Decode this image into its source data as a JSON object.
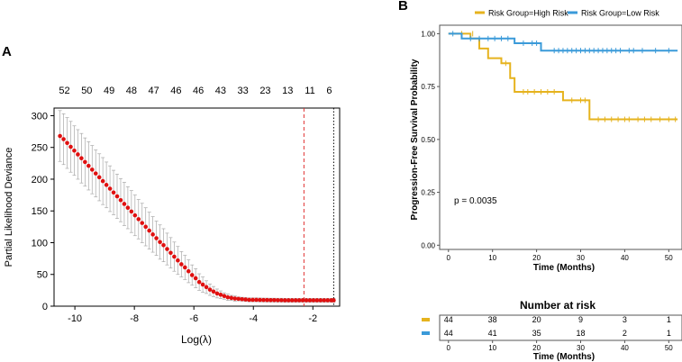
{
  "panels": {
    "a_label": "A",
    "b_label": "B"
  },
  "chart_data": [
    {
      "type": "scatter",
      "panel": "A",
      "xlabel": "Log(λ)",
      "ylabel": "Partial Likelihood Deviance",
      "xlim": [
        -10.7,
        -1.1
      ],
      "ylim": [
        0,
        312
      ],
      "x_ticks": [
        -10,
        -8,
        -6,
        -4,
        -2
      ],
      "x_tick_labels": [
        "-10",
        "-8",
        "-6",
        "-4",
        "-2"
      ],
      "y_ticks": [
        0,
        50,
        100,
        150,
        200,
        250,
        300
      ],
      "y_tick_labels": [
        "0",
        "50",
        "100",
        "150",
        "200",
        "250",
        "300"
      ],
      "top_axis_positions": [
        -10.35,
        -9.6,
        -8.85,
        -8.1,
        -7.35,
        -6.6,
        -5.85,
        -5.1,
        -4.35,
        -3.6,
        -2.85,
        -2.1,
        -1.45
      ],
      "top_axis_labels": [
        "52",
        "50",
        "49",
        "48",
        "47",
        "46",
        "46",
        "43",
        "33",
        "23",
        "13",
        "11",
        "6"
      ],
      "lambda_min": -2.3,
      "lambda_1se": -1.3,
      "points_x": [
        -10.5,
        -10.38,
        -10.26,
        -10.14,
        -10.02,
        -9.9,
        -9.78,
        -9.66,
        -9.54,
        -9.42,
        -9.3,
        -9.18,
        -9.06,
        -8.94,
        -8.82,
        -8.7,
        -8.58,
        -8.46,
        -8.34,
        -8.22,
        -8.1,
        -7.98,
        -7.86,
        -7.74,
        -7.62,
        -7.5,
        -7.38,
        -7.26,
        -7.14,
        -7.02,
        -6.9,
        -6.78,
        -6.66,
        -6.54,
        -6.42,
        -6.3,
        -6.18,
        -6.06,
        -5.94,
        -5.82,
        -5.7,
        -5.58,
        -5.46,
        -5.34,
        -5.22,
        -5.1,
        -4.98,
        -4.86,
        -4.74,
        -4.62,
        -4.5,
        -4.38,
        -4.26,
        -4.14,
        -4.02,
        -3.9,
        -3.78,
        -3.66,
        -3.54,
        -3.42,
        -3.3,
        -3.18,
        -3.06,
        -2.94,
        -2.82,
        -2.7,
        -2.58,
        -2.46,
        -2.34,
        -2.22,
        -2.1,
        -1.98,
        -1.86,
        -1.74,
        -1.62,
        -1.5,
        -1.38,
        -1.3
      ],
      "points_y": [
        268,
        263,
        257,
        251,
        245,
        239,
        233,
        227,
        221,
        215,
        209,
        203,
        197,
        191,
        185,
        179,
        173,
        167,
        161,
        155,
        149,
        143,
        137,
        131,
        125,
        119,
        113,
        107,
        101,
        96,
        90,
        84,
        78,
        72,
        66,
        61,
        55,
        49,
        44,
        38,
        34,
        30,
        26,
        23,
        20,
        18,
        16,
        14,
        13,
        12,
        11.5,
        11,
        10.5,
        10,
        10,
        10,
        9.8,
        9.7,
        9.6,
        9.5,
        9.5,
        9.4,
        9.4,
        9.3,
        9.3,
        9.3,
        9.3,
        9.3,
        9.3,
        9.3,
        9.3,
        9.3,
        9.3,
        9.3,
        9.3,
        9.3,
        9.3,
        9.3
      ],
      "error_halfwidth": [
        40,
        40,
        40,
        40,
        39,
        39,
        39,
        38,
        38,
        38,
        37,
        37,
        37,
        36,
        36,
        35,
        35,
        34,
        34,
        33,
        33,
        32,
        31,
        31,
        30,
        29,
        28,
        27,
        27,
        26,
        25,
        24,
        23,
        22,
        20,
        19,
        18,
        16,
        15,
        13,
        12,
        10,
        9,
        8,
        7,
        6,
        5,
        5,
        4,
        4,
        3,
        3,
        3,
        3,
        3,
        3,
        3,
        3,
        3,
        3,
        3,
        3,
        3,
        3,
        3,
        3,
        3,
        3,
        3,
        3,
        3,
        3,
        3,
        3,
        3,
        3,
        3,
        3
      ]
    },
    {
      "type": "line",
      "panel": "B",
      "xlabel": "Time (Months)",
      "ylabel": "Progression-Free Survival Probability",
      "xlim": [
        -2,
        53
      ],
      "ylim": [
        -0.02,
        1.04
      ],
      "x_ticks": [
        0,
        10,
        20,
        30,
        40,
        50
      ],
      "x_tick_labels": [
        "0",
        "10",
        "20",
        "30",
        "40",
        "50"
      ],
      "y_ticks": [
        0,
        0.25,
        0.5,
        0.75,
        1.0
      ],
      "y_tick_labels": [
        "0.00",
        "0.25",
        "0.50",
        "0.75",
        "1.00"
      ],
      "legend_position": "top",
      "annotation": "p = 0.0035",
      "series": [
        {
          "name": "Risk Group=High Risk",
          "color": "#e6b31e",
          "steps_x": [
            0,
            5,
            7,
            9,
            12,
            14,
            15,
            26,
            32,
            52
          ],
          "steps_y": [
            1.0,
            0.977,
            0.93,
            0.884,
            0.86,
            0.79,
            0.725,
            0.685,
            0.595,
            0.595
          ],
          "censor_x": [
            3,
            5.5,
            13,
            17,
            18,
            19.5,
            21,
            22.5,
            24,
            28,
            30,
            31,
            34,
            35.5,
            37,
            38.5,
            40,
            41,
            43,
            44.5,
            46,
            48,
            50,
            51.5
          ],
          "censor_y": [
            1.0,
            1.0,
            0.86,
            0.725,
            0.725,
            0.725,
            0.725,
            0.725,
            0.725,
            0.685,
            0.685,
            0.685,
            0.595,
            0.595,
            0.595,
            0.595,
            0.595,
            0.595,
            0.595,
            0.595,
            0.595,
            0.595,
            0.595,
            0.595
          ]
        },
        {
          "name": "Risk Group=Low Risk",
          "color": "#3a9ad9",
          "steps_x": [
            0,
            3,
            15,
            21,
            52
          ],
          "steps_y": [
            1.0,
            0.977,
            0.955,
            0.92,
            0.92
          ],
          "censor_x": [
            1,
            5,
            7,
            9,
            10.5,
            12,
            13.5,
            17,
            19,
            20,
            24,
            25,
            26,
            27,
            28,
            29,
            30,
            31,
            32,
            33,
            34,
            35,
            36,
            37,
            38,
            39,
            41,
            42,
            44,
            47,
            50
          ],
          "censor_y": [
            1.0,
            0.977,
            0.977,
            0.977,
            0.977,
            0.977,
            0.977,
            0.955,
            0.955,
            0.955,
            0.92,
            0.92,
            0.92,
            0.92,
            0.92,
            0.92,
            0.92,
            0.92,
            0.92,
            0.92,
            0.92,
            0.92,
            0.92,
            0.92,
            0.92,
            0.92,
            0.92,
            0.92,
            0.92,
            0.92,
            0.92
          ]
        }
      ]
    },
    {
      "type": "table",
      "panel": "B-risk",
      "title": "Number at risk",
      "xlabel": "Time (Months)",
      "x_ticks": [
        0,
        10,
        20,
        30,
        40,
        50
      ],
      "x_tick_labels": [
        "0",
        "10",
        "20",
        "30",
        "40",
        "50"
      ],
      "rows": [
        {
          "color": "#e6b31e",
          "values": [
            "44",
            "38",
            "20",
            "9",
            "3",
            "1"
          ]
        },
        {
          "color": "#3a9ad9",
          "values": [
            "44",
            "41",
            "35",
            "18",
            "2",
            "1"
          ]
        }
      ]
    }
  ]
}
